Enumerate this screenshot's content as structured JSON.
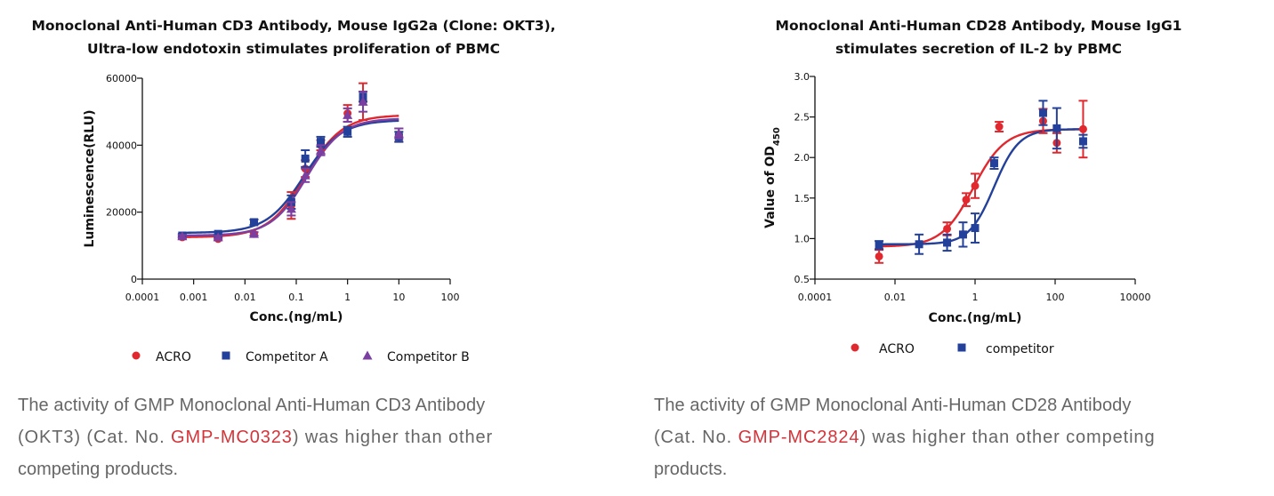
{
  "colors": {
    "acro": "#e0282e",
    "competitor": "#23409a",
    "competitor_b": "#7a3fa0",
    "link": "#d3343a"
  },
  "chart_data": [
    {
      "type": "scatter",
      "title_lines": [
        "Monoclonal Anti-Human CD3 Antibody, Mouse IgG2a (Clone: OKT3),",
        "Ultra-low endotoxin stimulates proliferation of PBMC"
      ],
      "xlabel": "Conc.(ng/mL)",
      "ylabel": "Luminescence(RLU)",
      "xscale": "log",
      "xlim": [
        0.0001,
        100
      ],
      "ylim": [
        0,
        60000
      ],
      "xticks": [
        0.0001,
        0.001,
        0.01,
        0.1,
        1,
        10,
        100
      ],
      "xtick_labels": [
        "0.0001",
        "0.001",
        "0.01",
        "0.1",
        "1",
        "10",
        "100"
      ],
      "yticks": [
        0,
        20000,
        40000,
        60000
      ],
      "ytick_labels": [
        "0",
        "20000",
        "40000",
        "60000"
      ],
      "legend_position": "bottom",
      "series": [
        {
          "name": "ACRO",
          "marker": "circle",
          "color": "#e0282e",
          "x": [
            0.0006,
            0.003,
            0.015,
            0.08,
            0.15,
            0.3,
            1,
            2,
            10
          ],
          "y": [
            12500,
            12000,
            13500,
            22000,
            33000,
            40000,
            49500,
            53000,
            43000
          ],
          "err": [
            400,
            400,
            500,
            4000,
            2500,
            1500,
            2500,
            5500,
            2000
          ],
          "curve": {
            "bottom": 12500,
            "top": 49000,
            "ec50": 0.15,
            "hill": 1.2
          }
        },
        {
          "name": "Competitor A",
          "marker": "square",
          "color": "#23409a",
          "x": [
            0.0006,
            0.003,
            0.015,
            0.08,
            0.15,
            0.3,
            1,
            2,
            10
          ],
          "y": [
            13000,
            13500,
            17000,
            23000,
            36000,
            41000,
            44000,
            54500,
            42500
          ],
          "err": [
            500,
            500,
            800,
            2000,
            2500,
            1500,
            1500,
            1500,
            1500
          ],
          "curve": {
            "bottom": 13800,
            "top": 47500,
            "ec50": 0.14,
            "hill": 1.2
          }
        },
        {
          "name": "Competitor B",
          "marker": "triangle",
          "color": "#7a3fa0",
          "x": [
            0.0006,
            0.003,
            0.015,
            0.08,
            0.15,
            0.3,
            1,
            2,
            10
          ],
          "y": [
            12800,
            12500,
            13500,
            21000,
            31000,
            38500,
            49000,
            53000,
            43500
          ],
          "err": [
            400,
            400,
            500,
            2000,
            2000,
            1500,
            2000,
            3000,
            1500
          ],
          "curve": {
            "bottom": 13000,
            "top": 48000,
            "ec50": 0.16,
            "hill": 1.25
          }
        }
      ]
    },
    {
      "type": "scatter",
      "title_lines": [
        "Monoclonal Anti-Human CD28 Antibody, Mouse IgG1",
        "stimulates secretion of IL-2 by PBMC"
      ],
      "xlabel": "Conc.(ng/mL)",
      "ylabel": "Value of OD",
      "ylabel_subscript": "450",
      "xscale": "log",
      "xlim": [
        0.0001,
        10000
      ],
      "ylim": [
        0.5,
        3.0
      ],
      "xticks": [
        0.0001,
        0.01,
        1,
        100,
        10000
      ],
      "xtick_labels": [
        "0.0001",
        "0.01",
        "1",
        "100",
        "10000"
      ],
      "yticks": [
        0.5,
        1.0,
        1.5,
        2.0,
        2.5,
        3.0
      ],
      "ytick_labels": [
        "0.5",
        "1.0",
        "1.5",
        "2.0",
        "2.5",
        "3.0"
      ],
      "legend_position": "bottom",
      "series": [
        {
          "name": "ACRO",
          "marker": "circle",
          "color": "#e0282e",
          "x": [
            0.004,
            0.2,
            0.6,
            1.0,
            4.0,
            50,
            110,
            500
          ],
          "y": [
            0.78,
            1.12,
            1.48,
            1.65,
            2.38,
            2.45,
            2.18,
            2.35
          ],
          "err": [
            0.08,
            0.08,
            0.08,
            0.15,
            0.06,
            0.15,
            0.12,
            0.35
          ],
          "curve": {
            "bottom": 0.9,
            "top": 2.35,
            "ec50": 0.9,
            "hill": 1.1
          }
        },
        {
          "name": "competitor",
          "marker": "square",
          "color": "#23409a",
          "x": [
            0.004,
            0.04,
            0.2,
            0.5,
            1.0,
            3.0,
            50,
            110,
            500
          ],
          "y": [
            0.92,
            0.93,
            0.95,
            1.05,
            1.13,
            1.93,
            2.55,
            2.36,
            2.2
          ],
          "err": [
            0.05,
            0.12,
            0.1,
            0.15,
            0.18,
            0.07,
            0.15,
            0.25,
            0.08
          ],
          "curve": {
            "bottom": 0.93,
            "top": 2.35,
            "ec50": 3.0,
            "hill": 1.4
          }
        }
      ]
    }
  ],
  "captions": [
    {
      "before": " The activity of GMP Monoclonal Anti-Human CD3 Antibody",
      "middle": " (OKT3) (Cat. No. ",
      "link": "GMP-MC0323",
      "after": ") was higher than other",
      "end": "competing products."
    },
    {
      "before": " The activity of GMP Monoclonal Anti-Human CD28 Antibody",
      "middle": " (Cat. No. ",
      "link": "GMP-MC2824",
      "after": ") was higher than other competing",
      "end": "products."
    }
  ]
}
